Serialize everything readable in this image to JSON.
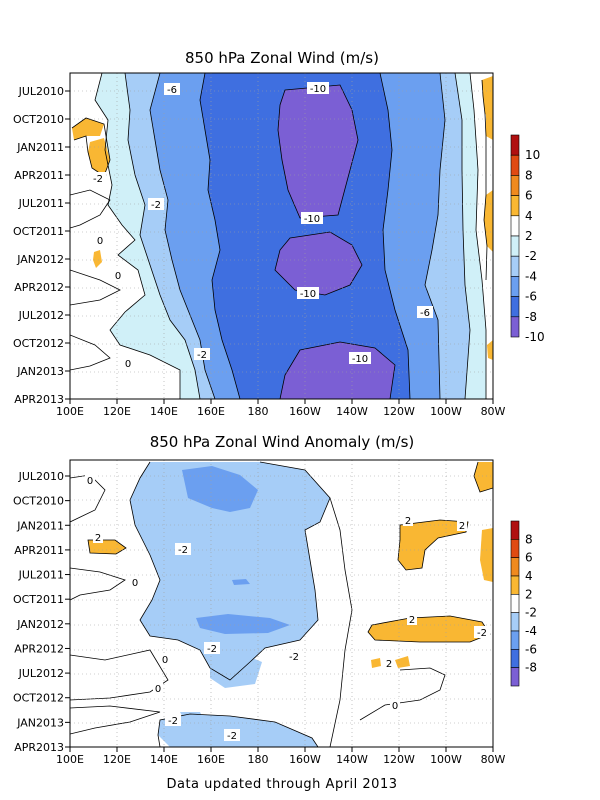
{
  "footer": "Data updated through April 2013",
  "chart_data": [
    {
      "type": "heatmap",
      "title": "850 hPa Zonal Wind (m/s)",
      "x_ticks": [
        "100E",
        "120E",
        "140E",
        "160E",
        "180",
        "160W",
        "140W",
        "120W",
        "100W",
        "80W"
      ],
      "y_ticks": [
        "JUL2010",
        "OCT2010",
        "JAN2011",
        "APR2011",
        "JUL2011",
        "OCT2011",
        "JAN2012",
        "APR2012",
        "JUL2012",
        "OCT2012",
        "JAN2013",
        "APR2013"
      ],
      "grid": true,
      "colorbar_labels": [
        "-10",
        "-8",
        "-6",
        "-4",
        "-2",
        "2",
        "4",
        "6",
        "8",
        "10"
      ],
      "colorbar_colors": [
        "#7b5fd4",
        "#3f6fe0",
        "#6b9ff0",
        "#a6cdf7",
        "#d0f0f8",
        "#ffffff",
        "#f9b733",
        "#f08a1f",
        "#e04a12",
        "#b01010"
      ],
      "contour_labels": [
        "-10",
        "-10",
        "-10",
        "-10",
        "-6",
        "-6",
        "-2",
        "-2",
        "-2",
        "0",
        "0",
        "0"
      ]
    },
    {
      "type": "heatmap",
      "title": "850 hPa Zonal Wind Anomaly (m/s)",
      "x_ticks": [
        "100E",
        "120E",
        "140E",
        "160E",
        "180",
        "160W",
        "140W",
        "120W",
        "100W",
        "80W"
      ],
      "y_ticks": [
        "JUL2010",
        "OCT2010",
        "JAN2011",
        "APR2011",
        "JUL2011",
        "OCT2011",
        "JAN2012",
        "APR2012",
        "JUL2012",
        "OCT2012",
        "JAN2013",
        "APR2013"
      ],
      "grid": true,
      "colorbar_labels": [
        "-8",
        "-6",
        "-4",
        "-2",
        "2",
        "4",
        "6",
        "8"
      ],
      "colorbar_colors": [
        "#7b5fd4",
        "#3f6fe0",
        "#6b9ff0",
        "#a6cdf7",
        "#ffffff",
        "#f9b733",
        "#f08a1f",
        "#e04a12",
        "#b01010"
      ],
      "contour_labels": [
        "-2",
        "-2",
        "-2",
        "-2",
        "-2",
        "-2",
        "2",
        "2",
        "2",
        "2",
        "2",
        "0",
        "0",
        "0",
        "0",
        "0"
      ]
    }
  ]
}
